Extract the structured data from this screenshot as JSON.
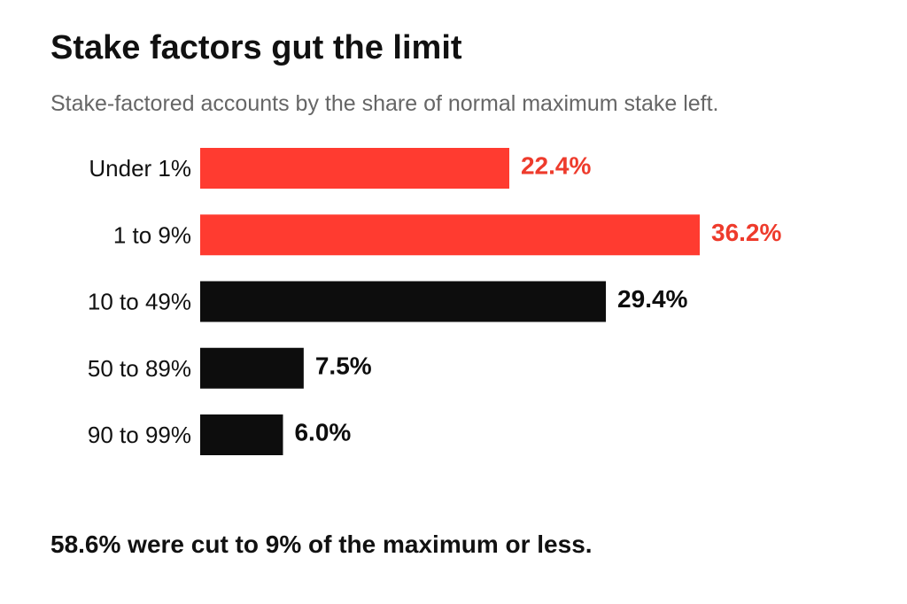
{
  "title": "Stake factors gut the limit",
  "subtitle": "Stake-factored accounts by the share of normal maximum stake left.",
  "footnote": "58.6% were cut to 9% of the maximum or less.",
  "colors": {
    "highlight": "#ff3b30",
    "default": "#0d0d0d",
    "highlight_label": "#ee3b2c",
    "default_label": "#0d0d0d",
    "category_label": "#111111"
  },
  "chart_data": {
    "type": "bar",
    "orientation": "horizontal",
    "categories": [
      "Under 1%",
      "1 to 9%",
      "10 to 49%",
      "50 to 89%",
      "90 to 99%"
    ],
    "values": [
      22.4,
      36.2,
      29.4,
      7.5,
      6.0
    ],
    "value_labels": [
      "22.4%",
      "36.2%",
      "29.4%",
      "7.5%",
      "6.0%"
    ],
    "highlighted": [
      true,
      true,
      false,
      false,
      false
    ],
    "unit": "%",
    "xlim": [
      0,
      36.2
    ],
    "grid": false,
    "legend": "none"
  }
}
